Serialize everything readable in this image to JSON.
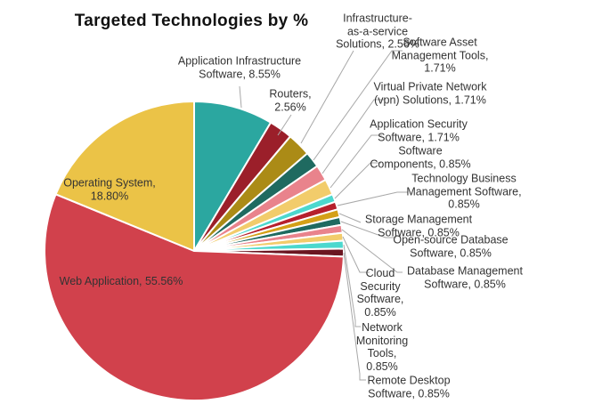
{
  "chart_data": {
    "type": "pie",
    "title": "Targeted Technologies by %",
    "unit": "%",
    "start_angle": "12 o'clock",
    "direction": "clockwise",
    "legend_position": "none (data labels with leader lines)",
    "slices": [
      {
        "name": "Application Infrastructure Software",
        "value": 8.55,
        "label": "Application Infrastructure\nSoftware, 8.55%",
        "color": "#2BA7A0"
      },
      {
        "name": "Routers",
        "value": 2.56,
        "label": "Routers,\n2.56%",
        "color": "#9B1F2A"
      },
      {
        "name": "Infrastructure-as-a-service Solutions",
        "value": 2.56,
        "label": "Infrastructure-\nas-a-service\nSolutions, 2.56%",
        "color": "#AB8B16"
      },
      {
        "name": "Software Asset Management Tools",
        "value": 1.71,
        "label": "Software Asset\nManagement Tools,\n1.71%",
        "color": "#1F6A60"
      },
      {
        "name": "Virtual Private Network (vpn) Solutions",
        "value": 1.71,
        "label": "Virtual Private Network\n(vpn) Solutions, 1.71%",
        "color": "#E9838C"
      },
      {
        "name": "Application Security Software",
        "value": 1.71,
        "label": "Application Security\nSoftware, 1.71%",
        "color": "#F2CC6B"
      },
      {
        "name": "Software Components",
        "value": 0.85,
        "label": "Software\nComponents, 0.85%",
        "color": "#4CD8CE"
      },
      {
        "name": "Technology Business Management Software",
        "value": 0.85,
        "label": "Technology Business\nManagement Software,\n0.85%",
        "color": "#B6202C"
      },
      {
        "name": "Storage Management Software",
        "value": 0.85,
        "label": "Storage Management\nSoftware, 0.85%",
        "color": "#D4A017"
      },
      {
        "name": "Open-source Database Software",
        "value": 0.85,
        "label": "Open-source Database\nSoftware, 0.85%",
        "color": "#1F6A60"
      },
      {
        "name": "Database Management Software",
        "value": 0.85,
        "label": "Database Management\nSoftware, 0.85%",
        "color": "#E9838C"
      },
      {
        "name": "Cloud Security Software",
        "value": 0.85,
        "label": "Cloud\nSecurity\nSoftware,\n0.85%",
        "color": "#F2CC6B"
      },
      {
        "name": "Network Monitoring Tools",
        "value": 0.85,
        "label": "Network\nMonitoring\nTools,\n0.85%",
        "color": "#4CD8CE"
      },
      {
        "name": "Remote Desktop Software",
        "value": 0.85,
        "label": "Remote Desktop\nSoftware, 0.85%",
        "color": "#6B1621"
      },
      {
        "name": "Web Application",
        "value": 55.56,
        "label": "Web Application, 55.56%",
        "color": "#D1414C"
      },
      {
        "name": "Operating System",
        "value": 18.8,
        "label": "Operating System,\n18.80%",
        "color": "#EBC347"
      }
    ],
    "colors": {
      "leader_line": "#A8A8A8",
      "label_text": "#333333",
      "title_text": "#111111",
      "background": "#FFFFFF",
      "slice_border": "#FFFFFF"
    }
  }
}
